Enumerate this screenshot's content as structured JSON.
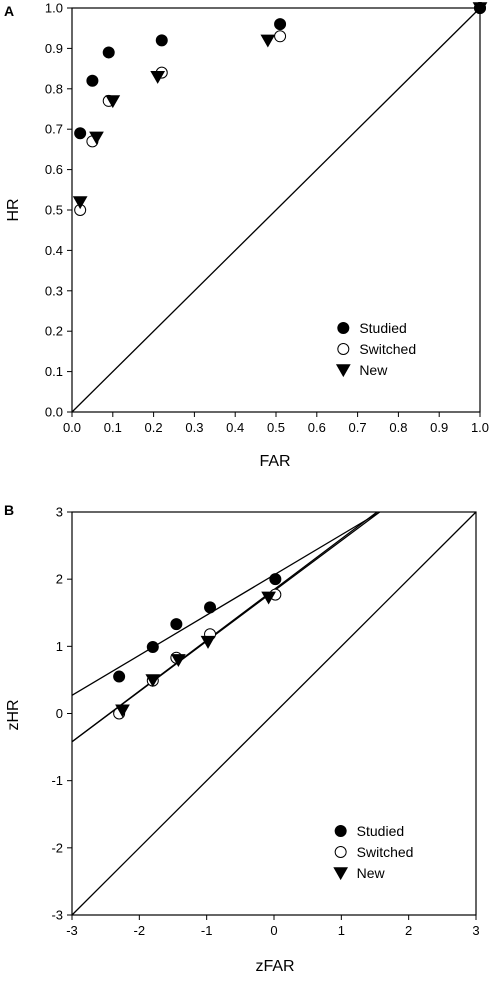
{
  "chart_data": [
    {
      "type": "scatter",
      "panel_label": "A",
      "xlabel": "FAR",
      "ylabel": "HR",
      "xlim": [
        0,
        1
      ],
      "ylim": [
        0,
        1
      ],
      "xticks": [
        "0.0",
        "0.1",
        "0.2",
        "0.3",
        "0.4",
        "0.5",
        "0.6",
        "0.7",
        "0.8",
        "0.9",
        "1.0"
      ],
      "yticks": [
        "0.0",
        "0.1",
        "0.2",
        "0.3",
        "0.4",
        "0.5",
        "0.6",
        "0.7",
        "0.8",
        "0.9",
        "1.0"
      ],
      "grid": false,
      "legend_position": "bottom-right",
      "series": [
        {
          "name": "Studied",
          "marker": "filled-circle",
          "x": [
            0.02,
            0.05,
            0.09,
            0.22,
            0.51,
            1.0
          ],
          "y": [
            0.69,
            0.82,
            0.89,
            0.92,
            0.96,
            1.0
          ]
        },
        {
          "name": "Switched",
          "marker": "open-circle",
          "x": [
            0.02,
            0.05,
            0.09,
            0.22,
            0.51,
            1.0
          ],
          "y": [
            0.5,
            0.67,
            0.77,
            0.84,
            0.93,
            1.0
          ]
        },
        {
          "name": "New",
          "marker": "filled-triangle-down",
          "x": [
            0.02,
            0.06,
            0.1,
            0.21,
            0.48,
            1.0
          ],
          "y": [
            0.52,
            0.68,
            0.77,
            0.83,
            0.92,
            1.0
          ]
        }
      ],
      "reference_lines": [
        {
          "x": [
            0,
            1
          ],
          "y": [
            0,
            1
          ]
        }
      ]
    },
    {
      "type": "scatter",
      "panel_label": "B",
      "xlabel": "zFAR",
      "ylabel": "zHR",
      "xlim": [
        -3,
        3
      ],
      "ylim": [
        -3,
        3
      ],
      "xticks": [
        "-3",
        "-2",
        "-1",
        "0",
        "1",
        "2",
        "3"
      ],
      "yticks": [
        "-3",
        "-2",
        "-1",
        "0",
        "1",
        "2",
        "3"
      ],
      "grid": false,
      "legend_position": "bottom-right",
      "series": [
        {
          "name": "Studied",
          "marker": "filled-circle",
          "x": [
            -2.3,
            -1.8,
            -1.45,
            -0.95,
            0.02
          ],
          "y": [
            0.55,
            0.99,
            1.33,
            1.58,
            2.0
          ]
        },
        {
          "name": "Switched",
          "marker": "open-circle",
          "x": [
            -2.3,
            -1.8,
            -1.45,
            -0.95,
            0.02
          ],
          "y": [
            0.0,
            0.49,
            0.83,
            1.18,
            1.77
          ]
        },
        {
          "name": "New",
          "marker": "filled-triangle-down",
          "x": [
            -2.25,
            -1.8,
            -1.42,
            -0.98,
            -0.08
          ],
          "y": [
            0.05,
            0.5,
            0.8,
            1.07,
            1.73
          ]
        }
      ],
      "reference_lines": [
        {
          "x": [
            -3,
            1.57
          ],
          "y": [
            0.27,
            3
          ]
        },
        {
          "x": [
            -3,
            1.57
          ],
          "y": [
            -0.42,
            3
          ]
        },
        {
          "x": [
            -3,
            1.53
          ],
          "y": [
            -0.42,
            3
          ]
        },
        {
          "x": [
            -3,
            3
          ],
          "y": [
            -3,
            3
          ]
        }
      ]
    }
  ]
}
